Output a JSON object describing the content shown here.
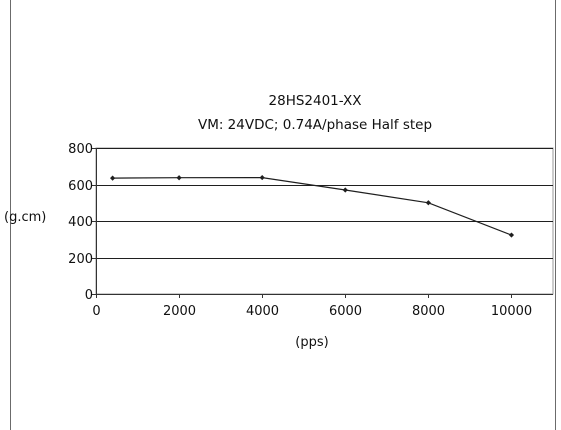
{
  "chart_data": {
    "type": "line",
    "title": "28HS2401-XX",
    "subtitle": "VM: 24VDC; 0.74A/phase  Half step",
    "xlabel": "(pps)",
    "ylabel": "(g.cm)",
    "xlim": [
      0,
      11000
    ],
    "ylim": [
      0,
      800
    ],
    "x_ticks": [
      "0",
      "2000",
      "4000",
      "6000",
      "8000",
      "10000"
    ],
    "x_tick_values": [
      0,
      2000,
      4000,
      6000,
      8000,
      10000
    ],
    "y_ticks": [
      "0",
      "200",
      "400",
      "600",
      "800"
    ],
    "y_tick_values": [
      0,
      200,
      400,
      600,
      800
    ],
    "grid": "horizontal",
    "legend": "none",
    "series": [
      {
        "x": [
          400,
          2000,
          4000,
          6000,
          8000,
          10000
        ],
        "values": [
          635,
          637,
          638,
          570,
          500,
          323
        ]
      }
    ],
    "colors": {
      "line": "#1f1f1f",
      "grid": "#1f1f1f",
      "frame": "#9a9a9a"
    }
  }
}
